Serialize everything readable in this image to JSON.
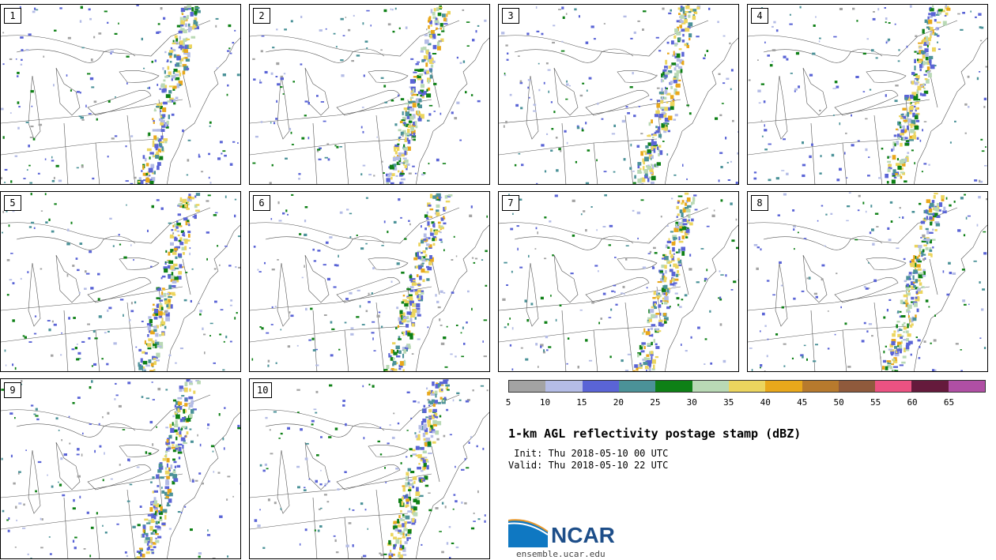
{
  "panels": [
    "1",
    "2",
    "3",
    "4",
    "5",
    "6",
    "7",
    "8",
    "9",
    "10"
  ],
  "colorbar": {
    "colors": [
      "#a3a3a3",
      "#b4bce6",
      "#5a64d6",
      "#4b9298",
      "#0e8016",
      "#b9d9b5",
      "#ecd55e",
      "#e9a81b",
      "#b77a2d",
      "#8f5a3c",
      "#ec5282",
      "#651a3c",
      "#b04fa4"
    ],
    "ticks": [
      "5",
      "10",
      "15",
      "20",
      "25",
      "30",
      "35",
      "40",
      "45",
      "50",
      "55",
      "60",
      "65"
    ]
  },
  "title": "1-km AGL reflectivity postage stamp (dBZ)",
  "init": " Init: Thu 2018-05-10 00 UTC",
  "valid": "Valid: Thu 2018-05-10 22 UTC",
  "logo": "NCAR",
  "url": "ensemble.ucar.edu"
}
